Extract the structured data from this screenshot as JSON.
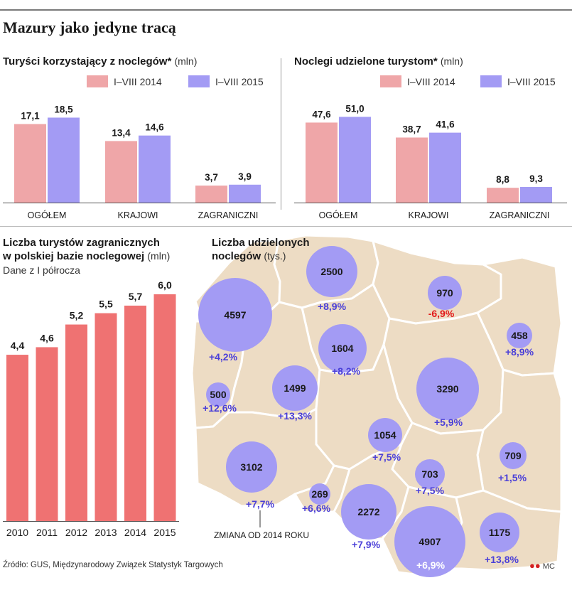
{
  "title": "Mazury jako jedyne tracą",
  "colors": {
    "pink": "#efa6a8",
    "purple": "#a39bf4",
    "red_bar": "#ef7272",
    "map_bg": "#eddcc4",
    "neg": "#e21b1b",
    "pos": "#4a3fd8"
  },
  "legend": {
    "y2014": "I–VIII 2014",
    "y2015": "I–VIII 2015"
  },
  "chart_data": [
    {
      "type": "bar",
      "title": "Turyści korzystający z noclegów*",
      "unit": "(mln)",
      "categories": [
        "OGÓŁEM",
        "KRAJOWI",
        "ZAGRANICZNI"
      ],
      "series": [
        {
          "name": "I–VIII 2014",
          "values": [
            17.1,
            13.4,
            3.7
          ],
          "labels": [
            "17,1",
            "13,4",
            "3,7"
          ]
        },
        {
          "name": "I–VIII 2015",
          "values": [
            18.5,
            14.6,
            3.9
          ],
          "labels": [
            "18,5",
            "14,6",
            "3,9"
          ]
        }
      ],
      "ylim": [
        0,
        19.5
      ]
    },
    {
      "type": "bar",
      "title": "Noclegi udzielone turystom*",
      "unit": "(mln)",
      "categories": [
        "OGÓŁEM",
        "KRAJOWI",
        "ZAGRANICZNI"
      ],
      "series": [
        {
          "name": "I–VIII 2014",
          "values": [
            47.6,
            38.7,
            8.8
          ],
          "labels": [
            "47,6",
            "38,7",
            "8,8"
          ]
        },
        {
          "name": "I–VIII 2015",
          "values": [
            51.0,
            41.6,
            9.3
          ],
          "labels": [
            "51,0",
            "41,6",
            "9,3"
          ]
        }
      ],
      "ylim": [
        0,
        53.7
      ]
    },
    {
      "type": "bar",
      "title_line1": "Liczba turystów zagranicznych",
      "title_line2": "w polskiej bazie noclegowej",
      "unit": "(mln)",
      "subtitle": "Dane z I półrocza",
      "categories": [
        "2010",
        "2011",
        "2012",
        "2013",
        "2014",
        "2015"
      ],
      "values": [
        4.4,
        4.6,
        5.2,
        5.5,
        5.7,
        6.0
      ],
      "labels": [
        "4,4",
        "4,6",
        "5,2",
        "5,5",
        "5,7",
        "6,0"
      ],
      "ylim": [
        0,
        6.0
      ]
    },
    {
      "type": "bubble-map",
      "title_line1": "Liczba udzielonych",
      "title_line2": "noclegów",
      "unit": "(tys.)",
      "note": "ZMIANA OD 2014 ROKU",
      "regions": [
        {
          "value": 2500,
          "change": "+8,9%"
        },
        {
          "value": 970,
          "change": "-6,9%"
        },
        {
          "value": 4597,
          "change": "+4,2%"
        },
        {
          "value": 458,
          "change": "+8,9%"
        },
        {
          "value": 1604,
          "change": "+8,2%"
        },
        {
          "value": 500,
          "change": "+12,6%"
        },
        {
          "value": 1499,
          "change": "+13,3%"
        },
        {
          "value": 3290,
          "change": "+5,9%"
        },
        {
          "value": 1054,
          "change": "+7,5%"
        },
        {
          "value": 709,
          "change": "+1,5%"
        },
        {
          "value": 3102,
          "change": "+7,7%"
        },
        {
          "value": 703,
          "change": "+7,5%"
        },
        {
          "value": 269,
          "change": "+6,6%"
        },
        {
          "value": 2272,
          "change": "+7,9%"
        },
        {
          "value": 4907,
          "change": "+6,9%"
        },
        {
          "value": 1175,
          "change": "+13,8%"
        }
      ]
    }
  ],
  "source": "Źródło: GUS, Międzynarodowy Związek Statystyk Targowych",
  "credit": "MC"
}
